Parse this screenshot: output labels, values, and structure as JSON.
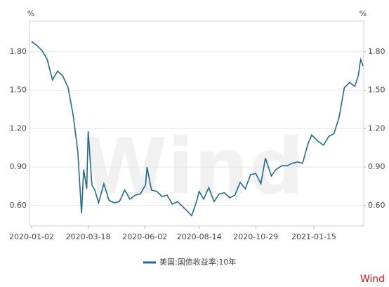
{
  "chart_data": {
    "type": "line",
    "watermark": "Wind",
    "brand": "Wind",
    "y_label": "%",
    "y2_label": "%",
    "x": [
      "2020-01-02",
      "2020-01-09",
      "2020-01-16",
      "2020-01-23",
      "2020-01-30",
      "2020-02-06",
      "2020-02-13",
      "2020-02-20",
      "2020-02-27",
      "2020-03-04",
      "2020-03-09",
      "2020-03-12",
      "2020-03-16",
      "2020-03-18",
      "2020-03-23",
      "2020-03-27",
      "2020-04-01",
      "2020-04-08",
      "2020-04-15",
      "2020-04-22",
      "2020-04-29",
      "2020-05-06",
      "2020-05-13",
      "2020-05-20",
      "2020-05-27",
      "2020-06-03",
      "2020-06-05",
      "2020-06-11",
      "2020-06-18",
      "2020-06-25",
      "2020-07-02",
      "2020-07-09",
      "2020-07-16",
      "2020-07-23",
      "2020-07-30",
      "2020-08-04",
      "2020-08-11",
      "2020-08-14",
      "2020-08-20",
      "2020-08-27",
      "2020-09-03",
      "2020-09-10",
      "2020-09-17",
      "2020-09-24",
      "2020-10-01",
      "2020-10-08",
      "2020-10-15",
      "2020-10-22",
      "2020-10-29",
      "2020-11-05",
      "2020-11-11",
      "2020-11-19",
      "2020-11-25",
      "2020-12-03",
      "2020-12-10",
      "2020-12-17",
      "2020-12-24",
      "2020-12-31",
      "2021-01-07",
      "2021-01-12",
      "2021-01-21",
      "2021-01-28",
      "2021-02-04",
      "2021-02-11",
      "2021-02-18",
      "2021-02-25",
      "2021-03-04",
      "2021-03-11",
      "2021-03-16",
      "2021-03-18",
      "2021-03-19",
      "2021-03-22"
    ],
    "series": [
      {
        "name": "美国:国债收益率:10年",
        "color": "#1f6b8c",
        "values": [
          1.88,
          1.85,
          1.81,
          1.74,
          1.58,
          1.65,
          1.61,
          1.52,
          1.3,
          1.02,
          0.54,
          0.88,
          0.73,
          1.18,
          0.76,
          0.72,
          0.62,
          0.77,
          0.64,
          0.62,
          0.63,
          0.72,
          0.65,
          0.68,
          0.69,
          0.76,
          0.9,
          0.72,
          0.71,
          0.67,
          0.68,
          0.61,
          0.63,
          0.59,
          0.55,
          0.52,
          0.64,
          0.71,
          0.65,
          0.74,
          0.63,
          0.69,
          0.7,
          0.66,
          0.68,
          0.78,
          0.73,
          0.84,
          0.85,
          0.77,
          0.97,
          0.83,
          0.88,
          0.91,
          0.91,
          0.93,
          0.94,
          0.93,
          1.08,
          1.15,
          1.1,
          1.07,
          1.14,
          1.16,
          1.29,
          1.52,
          1.56,
          1.53,
          1.62,
          1.71,
          1.74,
          1.69
        ]
      }
    ],
    "xlim": [
      "2020-01-02",
      "2021-03-23"
    ],
    "xticks": [
      "2020-01-02",
      "2020-03-18",
      "2020-06-02",
      "2020-08-14",
      "2020-10-29",
      "2021-01-15"
    ],
    "ylim": [
      0.44,
      2.04
    ],
    "yticks": [
      {
        "value": 0.6,
        "label": "0.60"
      },
      {
        "value": 0.9,
        "label": "0.90"
      },
      {
        "value": 1.2,
        "label": "1.20"
      },
      {
        "value": 1.5,
        "label": "1.50"
      },
      {
        "value": 1.8,
        "label": "1.80"
      }
    ],
    "y2lim": [
      0.44,
      2.04
    ],
    "y2ticks": [
      {
        "value": 0.6,
        "label": "0.60"
      },
      {
        "value": 0.9,
        "label": "0.90"
      },
      {
        "value": 1.2,
        "label": "1.20"
      },
      {
        "value": 1.5,
        "label": "1.50"
      },
      {
        "value": 1.8,
        "label": "1.80"
      }
    ],
    "grid": true
  }
}
